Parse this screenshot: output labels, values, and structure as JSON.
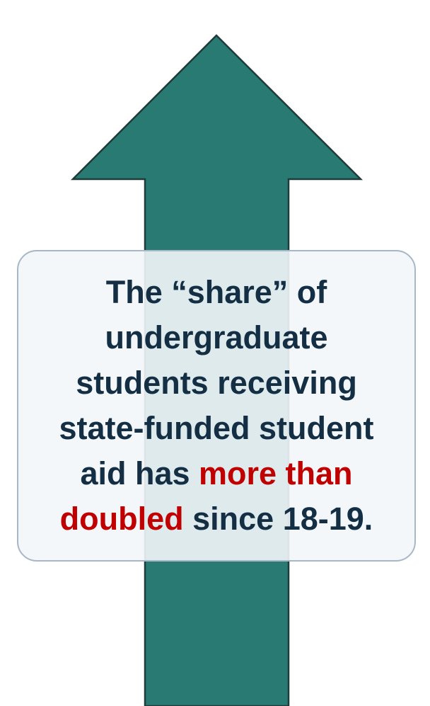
{
  "callout": {
    "line1": "The “share” of",
    "line2": "undergraduate",
    "line3": "students receiving",
    "line4": "state-funded student",
    "line5_start": "aid has ",
    "line5_highlight": "more than",
    "line6_highlight": "doubled",
    "line6_end": " since 18-19."
  },
  "colors": {
    "arrow_fill": "#287a72",
    "arrow_stroke": "#1f3b3a",
    "text": "#142e44",
    "highlight": "#c00000",
    "callout_border": "#a8b7c7",
    "callout_fill": "#f2f6f9"
  },
  "icons": {
    "arrow": "up-arrow-icon"
  }
}
